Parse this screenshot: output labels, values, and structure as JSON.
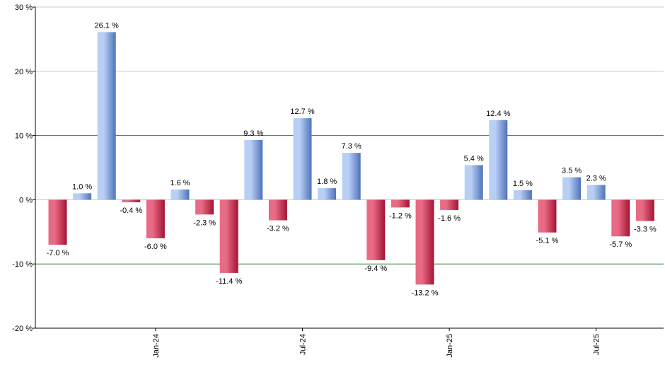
{
  "chart_data": {
    "type": "bar",
    "title": "",
    "xlabel": "",
    "ylabel": "",
    "ylim": [
      -20,
      30
    ],
    "yticks": [
      30,
      20,
      10,
      0,
      -10,
      -20
    ],
    "ytick_labels": [
      "30 %",
      "20 %",
      "10 %",
      "0 %",
      "-10 %",
      "-20 %"
    ],
    "x_tick_labels": [
      {
        "label": "Jan-24",
        "bar_index": 4
      },
      {
        "label": "Jul-24",
        "bar_index": 10
      },
      {
        "label": "Jan-25",
        "bar_index": 16
      },
      {
        "label": "Jul-25",
        "bar_index": 22
      }
    ],
    "values": [
      -7.0,
      1.0,
      26.1,
      -0.4,
      -6.0,
      1.6,
      -2.3,
      -11.4,
      9.3,
      -3.2,
      12.7,
      1.8,
      7.3,
      -9.4,
      -1.2,
      -13.2,
      -1.6,
      5.4,
      12.4,
      1.5,
      -5.1,
      3.5,
      2.3,
      -5.7,
      -3.3
    ],
    "value_labels": [
      "-7.0 %",
      "1.0 %",
      "26.1 %",
      "-0.4 %",
      "-6.0 %",
      "1.6 %",
      "-2.3 %",
      "-11.4 %",
      "9.3 %",
      "-3.2 %",
      "12.7 %",
      "1.8 %",
      "7.3 %",
      "-9.4 %",
      "-1.2 %",
      "-13.2 %",
      "-1.6 %",
      "5.4 %",
      "12.4 %",
      "1.5 %",
      "-5.1 %",
      "3.5 %",
      "2.3 %",
      "-5.7 %",
      "-3.3 %"
    ],
    "reference_lines": [
      10,
      -10
    ],
    "grid": true,
    "colors": {
      "positive_light": "#b8cff5",
      "positive_dark": "#4f72b8",
      "negative_light": "#e86a84",
      "negative_dark": "#a31434",
      "gridline": "#c8c8c8",
      "reference_line": "#2e7d32",
      "axis": "#000000"
    }
  }
}
